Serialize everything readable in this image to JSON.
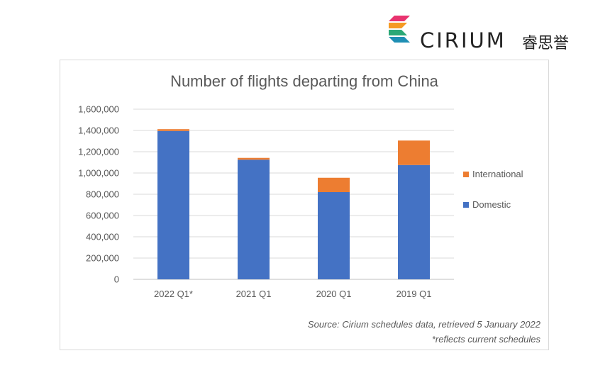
{
  "logo": {
    "text": "CIRIUM",
    "chinese": "睿思誉"
  },
  "chart_data": {
    "type": "bar",
    "stacked": true,
    "title": "Number of flights departing from China",
    "categories": [
      "2022 Q1*",
      "2021 Q1",
      "2020 Q1",
      "2019 Q1"
    ],
    "series": [
      {
        "name": "Domestic",
        "color": "#4472c4",
        "values": [
          1395000,
          1125000,
          820000,
          1075000
        ]
      },
      {
        "name": "International",
        "color": "#ed7d31",
        "values": [
          17000,
          17000,
          135000,
          230000
        ]
      }
    ],
    "ylim": [
      0,
      1600000
    ],
    "yticks": [
      0,
      200000,
      400000,
      600000,
      800000,
      1000000,
      1200000,
      1400000,
      1600000
    ],
    "ytick_labels": [
      "0",
      "200,000",
      "400,000",
      "600,000",
      "800,000",
      "1,000,000",
      "1,200,000",
      "1,400,000",
      "1,600,000"
    ],
    "grid": true,
    "legend_position": "right",
    "legend_order": [
      "International",
      "Domestic"
    ],
    "source_note": "Source:  Cirium schedules data, retrieved 5 January 2022",
    "footnote": "*reflects current schedules"
  }
}
